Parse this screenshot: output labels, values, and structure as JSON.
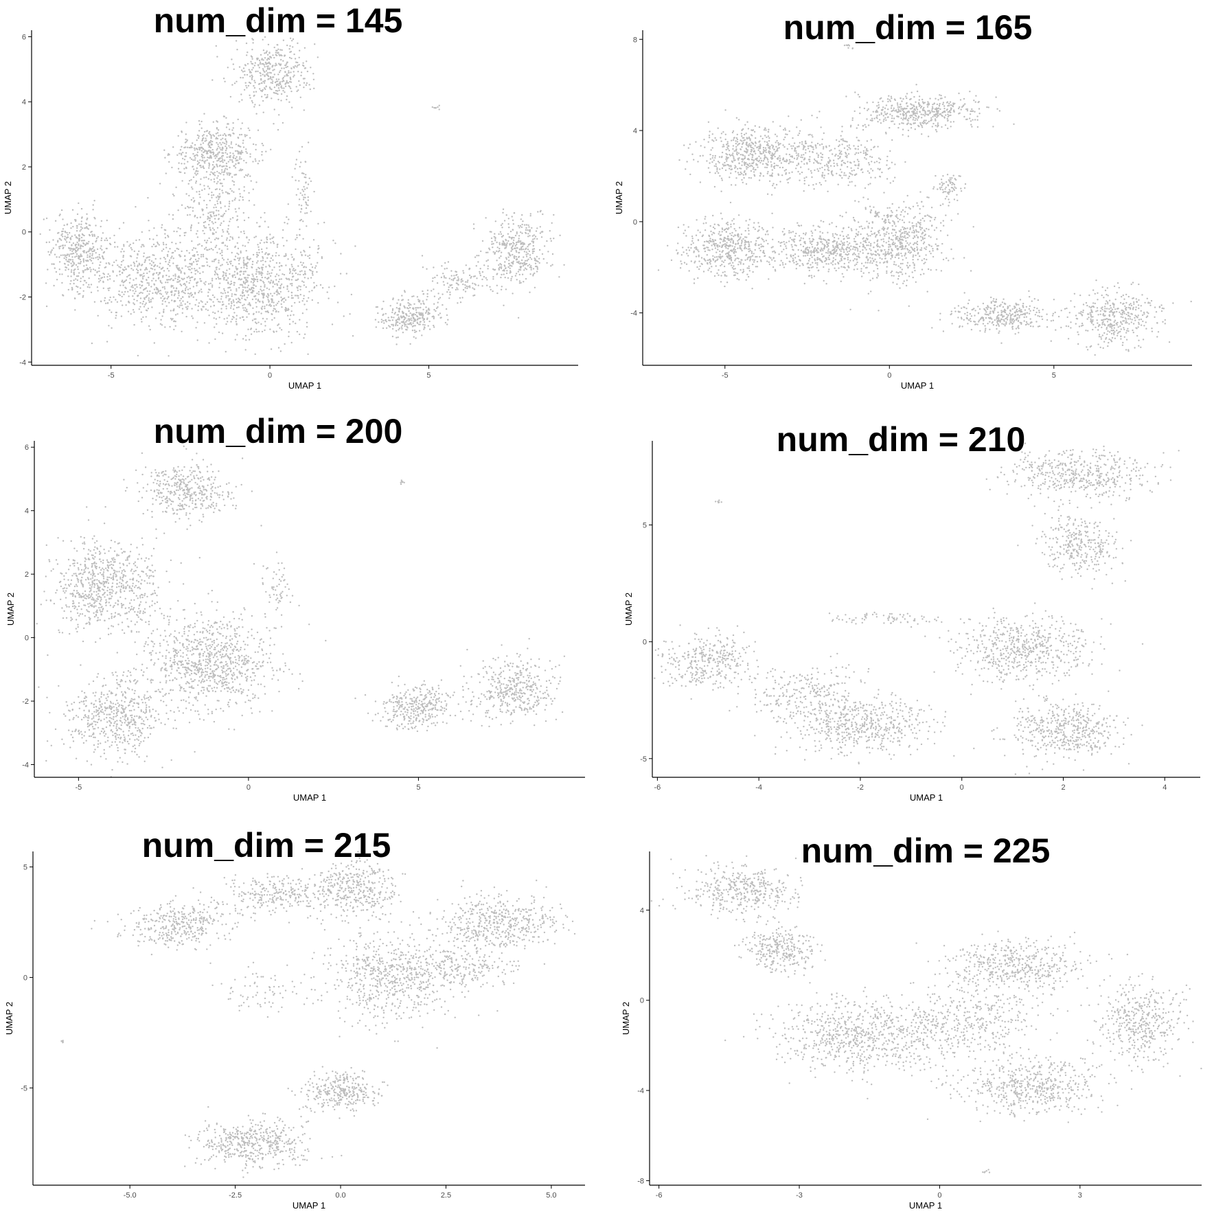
{
  "colors": {
    "point": "#bdbdbd",
    "axis": "#000000",
    "text": "#000000",
    "tick_label": "#4d4d4d"
  },
  "chart_data": [
    {
      "type": "scatter",
      "title": "num_dim = 145",
      "xlabel": "UMAP 1",
      "ylabel": "UMAP 2",
      "xlim": [
        -7.5,
        9.7
      ],
      "ylim": [
        -4.1,
        6.2
      ],
      "xticks": [
        -5,
        0,
        5
      ],
      "xtick_labels": [
        "-5",
        "0",
        "5"
      ],
      "yticks": [
        -4,
        -2,
        0,
        2,
        4,
        6
      ],
      "ytick_labels": [
        "-4",
        "-2",
        "0",
        "2",
        "4",
        "6"
      ],
      "clusters": [
        {
          "cx": -1.7,
          "cy": 2.4,
          "sx": 0.9,
          "sy": 0.6,
          "n": 450
        },
        {
          "cx": 0.1,
          "cy": 4.9,
          "sx": 0.8,
          "sy": 0.7,
          "n": 380
        },
        {
          "cx": -6.0,
          "cy": -0.6,
          "sx": 0.6,
          "sy": 0.8,
          "n": 380
        },
        {
          "cx": -3.5,
          "cy": -1.4,
          "sx": 1.5,
          "sy": 1.0,
          "n": 700
        },
        {
          "cx": -0.3,
          "cy": -1.6,
          "sx": 1.3,
          "sy": 1.1,
          "n": 800
        },
        {
          "cx": -1.7,
          "cy": 0.7,
          "sx": 0.7,
          "sy": 0.8,
          "n": 200
        },
        {
          "cx": 4.4,
          "cy": -2.6,
          "sx": 0.7,
          "sy": 0.4,
          "n": 280
        },
        {
          "cx": 6.0,
          "cy": -1.5,
          "sx": 0.8,
          "sy": 0.35,
          "n": 120
        },
        {
          "cx": 7.8,
          "cy": -0.6,
          "sx": 0.7,
          "sy": 0.7,
          "n": 380
        },
        {
          "cx": 1.1,
          "cy": 1.2,
          "sx": 0.25,
          "sy": 0.8,
          "n": 60
        },
        {
          "cx": 5.2,
          "cy": 3.8,
          "sx": 0.1,
          "sy": 0.05,
          "n": 8
        }
      ]
    },
    {
      "type": "scatter",
      "title": "num_dim = 165",
      "xlabel": "UMAP 1",
      "ylabel": "UMAP 2",
      "xlim": [
        -7.5,
        9.2
      ],
      "ylim": [
        -6.3,
        8.4
      ],
      "xticks": [
        -5,
        0,
        5
      ],
      "xtick_labels": [
        "-5",
        "0",
        "5"
      ],
      "yticks": [
        -4,
        0,
        4,
        8
      ],
      "ytick_labels": [
        "-4",
        "0",
        "4",
        "8"
      ],
      "clusters": [
        {
          "cx": -4.2,
          "cy": 3.0,
          "sx": 1.0,
          "sy": 0.8,
          "n": 500
        },
        {
          "cx": 0.9,
          "cy": 4.8,
          "sx": 1.2,
          "sy": 0.5,
          "n": 450
        },
        {
          "cx": -1.8,
          "cy": 2.7,
          "sx": 1.3,
          "sy": 0.9,
          "n": 350
        },
        {
          "cx": -5.0,
          "cy": -1.2,
          "sx": 0.9,
          "sy": 0.8,
          "n": 450
        },
        {
          "cx": -2.0,
          "cy": -1.2,
          "sx": 1.4,
          "sy": 0.7,
          "n": 550
        },
        {
          "cx": 0.3,
          "cy": -0.8,
          "sx": 0.9,
          "sy": 1.2,
          "n": 500
        },
        {
          "cx": 3.4,
          "cy": -4.1,
          "sx": 1.0,
          "sy": 0.5,
          "n": 330
        },
        {
          "cx": 6.8,
          "cy": -4.2,
          "sx": 0.9,
          "sy": 0.8,
          "n": 380
        },
        {
          "cx": 1.8,
          "cy": 1.5,
          "sx": 0.3,
          "sy": 0.5,
          "n": 70
        },
        {
          "cx": -1.3,
          "cy": 7.7,
          "sx": 0.1,
          "sy": 0.1,
          "n": 8
        }
      ]
    },
    {
      "type": "scatter",
      "title": "num_dim = 200",
      "xlabel": "UMAP 1",
      "ylabel": "UMAP 2",
      "xlim": [
        -6.3,
        9.9
      ],
      "ylim": [
        -4.4,
        6.2
      ],
      "xticks": [
        -5,
        0,
        5
      ],
      "xtick_labels": [
        "-5",
        "0",
        "5"
      ],
      "yticks": [
        -4,
        -2,
        0,
        2,
        4,
        6
      ],
      "ytick_labels": [
        "-4",
        "-2",
        "0",
        "2",
        "4",
        "6"
      ],
      "clusters": [
        {
          "cx": -1.8,
          "cy": 4.6,
          "sx": 0.9,
          "sy": 0.6,
          "n": 380
        },
        {
          "cx": -4.6,
          "cy": 1.6,
          "sx": 0.8,
          "sy": 1.0,
          "n": 450
        },
        {
          "cx": -3.5,
          "cy": 1.6,
          "sx": 0.8,
          "sy": 1.0,
          "n": 250
        },
        {
          "cx": -1.2,
          "cy": -0.8,
          "sx": 1.3,
          "sy": 1.0,
          "n": 850
        },
        {
          "cx": -4.0,
          "cy": -2.5,
          "sx": 0.9,
          "sy": 0.8,
          "n": 500
        },
        {
          "cx": 5.0,
          "cy": -2.2,
          "sx": 0.8,
          "sy": 0.5,
          "n": 320
        },
        {
          "cx": 7.8,
          "cy": -1.6,
          "sx": 0.8,
          "sy": 0.7,
          "n": 380
        },
        {
          "cx": 0.8,
          "cy": 1.6,
          "sx": 0.3,
          "sy": 0.7,
          "n": 60
        },
        {
          "cx": 4.5,
          "cy": 4.9,
          "sx": 0.05,
          "sy": 0.05,
          "n": 8
        }
      ]
    },
    {
      "type": "scatter",
      "title": "num_dim = 210",
      "xlabel": "UMAP 1",
      "ylabel": "UMAP 2",
      "xlim": [
        -6.1,
        4.7
      ],
      "ylim": [
        -5.8,
        8.6
      ],
      "xticks": [
        -6,
        -4,
        -2,
        0,
        2,
        4
      ],
      "xtick_labels": [
        "-6",
        "-4",
        "-2",
        "0",
        "2",
        "4"
      ],
      "yticks": [
        -5,
        0,
        5
      ],
      "ytick_labels": [
        "-5",
        "0",
        "5"
      ],
      "clusters": [
        {
          "cx": 2.3,
          "cy": 7.2,
          "sx": 0.9,
          "sy": 0.7,
          "n": 450
        },
        {
          "cx": 2.3,
          "cy": 4.2,
          "sx": 0.5,
          "sy": 0.9,
          "n": 300
        },
        {
          "cx": -5.0,
          "cy": -0.8,
          "sx": 0.6,
          "sy": 0.8,
          "n": 330
        },
        {
          "cx": -2.0,
          "cy": -3.6,
          "sx": 0.9,
          "sy": 0.8,
          "n": 500
        },
        {
          "cx": 1.2,
          "cy": -0.3,
          "sx": 0.9,
          "sy": 0.9,
          "n": 550
        },
        {
          "cx": 2.0,
          "cy": -3.8,
          "sx": 0.7,
          "sy": 0.8,
          "n": 450
        },
        {
          "cx": -3.0,
          "cy": -2.2,
          "sx": 0.8,
          "sy": 0.8,
          "n": 250
        },
        {
          "cx": -1.5,
          "cy": 1.0,
          "sx": 0.9,
          "sy": 0.2,
          "n": 70
        },
        {
          "cx": -4.8,
          "cy": 6.0,
          "sx": 0.05,
          "sy": 0.05,
          "n": 6
        }
      ]
    },
    {
      "type": "scatter",
      "title": "num_dim = 215",
      "xlabel": "UMAP 1",
      "ylabel": "UMAP 2",
      "xlim": [
        -7.3,
        5.8
      ],
      "ylim": [
        -9.4,
        5.7
      ],
      "xticks": [
        -5.0,
        -2.5,
        0.0,
        2.5,
        5.0
      ],
      "xtick_labels": [
        "-5.0",
        "-2.5",
        "0.0",
        "2.5",
        "5.0"
      ],
      "yticks": [
        -5,
        0,
        5
      ],
      "ytick_labels": [
        "-5",
        "0",
        "5"
      ],
      "clusters": [
        {
          "cx": -3.8,
          "cy": 2.4,
          "sx": 0.8,
          "sy": 0.7,
          "n": 350
        },
        {
          "cx": -1.5,
          "cy": 3.8,
          "sx": 0.9,
          "sy": 0.6,
          "n": 250
        },
        {
          "cx": 0.3,
          "cy": 4.0,
          "sx": 0.7,
          "sy": 0.8,
          "n": 350
        },
        {
          "cx": 1.2,
          "cy": 0.0,
          "sx": 1.0,
          "sy": 1.3,
          "n": 600
        },
        {
          "cx": 3.8,
          "cy": 2.5,
          "sx": 0.9,
          "sy": 0.8,
          "n": 450
        },
        {
          "cx": 3.0,
          "cy": 0.5,
          "sx": 0.8,
          "sy": 0.8,
          "n": 200
        },
        {
          "cx": -2.0,
          "cy": -7.5,
          "sx": 0.9,
          "sy": 0.7,
          "n": 450
        },
        {
          "cx": 0.0,
          "cy": -5.2,
          "sx": 0.6,
          "sy": 0.6,
          "n": 300
        },
        {
          "cx": -1.8,
          "cy": -0.6,
          "sx": 0.7,
          "sy": 0.7,
          "n": 70
        },
        {
          "cx": -6.6,
          "cy": -2.9,
          "sx": 0.05,
          "sy": 0.05,
          "n": 6
        }
      ]
    },
    {
      "type": "scatter",
      "title": "num_dim = 225",
      "xlabel": "UMAP 1",
      "ylabel": "UMAP 2",
      "xlim": [
        -6.2,
        5.6
      ],
      "ylim": [
        -8.2,
        6.6
      ],
      "xticks": [
        -6,
        -3,
        0,
        3
      ],
      "xtick_labels": [
        "-6",
        "-3",
        "0",
        "3"
      ],
      "yticks": [
        -8,
        -4,
        0,
        4
      ],
      "ytick_labels": [
        "-8",
        "-4",
        "0",
        "4"
      ],
      "clusters": [
        {
          "cx": -4.2,
          "cy": 4.9,
          "sx": 0.8,
          "sy": 0.7,
          "n": 380
        },
        {
          "cx": -3.4,
          "cy": 2.2,
          "sx": 0.5,
          "sy": 0.7,
          "n": 280
        },
        {
          "cx": -1.8,
          "cy": -1.6,
          "sx": 1.1,
          "sy": 1.1,
          "n": 650
        },
        {
          "cx": 1.6,
          "cy": 1.5,
          "sx": 1.0,
          "sy": 0.8,
          "n": 450
        },
        {
          "cx": 4.3,
          "cy": -1.0,
          "sx": 0.6,
          "sy": 1.1,
          "n": 400
        },
        {
          "cx": 2.0,
          "cy": -3.8,
          "sx": 1.0,
          "sy": 0.8,
          "n": 500
        },
        {
          "cx": 0.5,
          "cy": -1.0,
          "sx": 1.0,
          "sy": 1.0,
          "n": 400
        },
        {
          "cx": 1.0,
          "cy": -7.6,
          "sx": 0.05,
          "sy": 0.05,
          "n": 6
        }
      ]
    }
  ]
}
